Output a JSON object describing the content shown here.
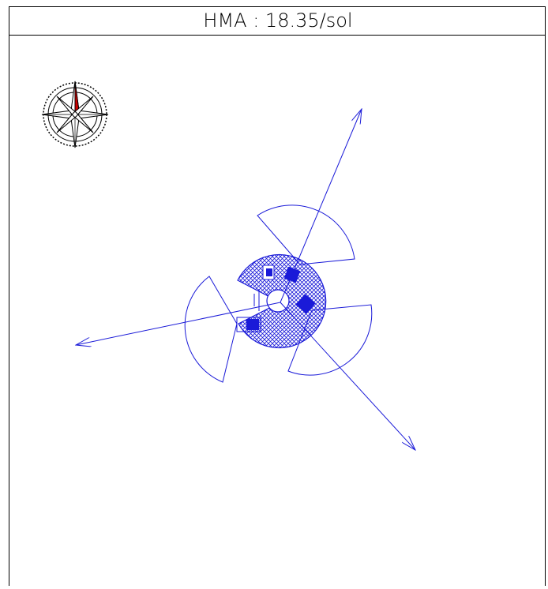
{
  "header": {
    "title": "HMA : 18.35/sol"
  }
}
